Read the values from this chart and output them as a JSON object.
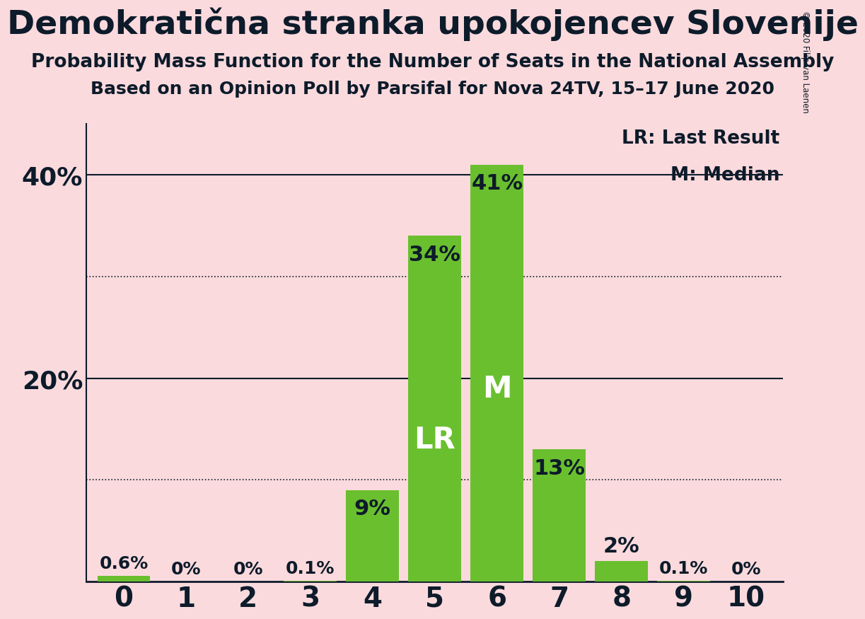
{
  "title": "Demokratična stranka upokojencev Slovenije",
  "subtitle1": "Probability Mass Function for the Number of Seats in the National Assembly",
  "subtitle2": "Based on an Opinion Poll by Parsifal for Nova 24TV, 15–17 June 2020",
  "copyright": "© 2020 Filip van Laenen",
  "categories": [
    0,
    1,
    2,
    3,
    4,
    5,
    6,
    7,
    8,
    9,
    10
  ],
  "values": [
    0.6,
    0.0,
    0.0,
    0.1,
    9.0,
    34.0,
    41.0,
    13.0,
    2.0,
    0.1,
    0.0
  ],
  "labels": [
    "0.6%",
    "0%",
    "0%",
    "0.1%",
    "9%",
    "34%",
    "41%",
    "13%",
    "2%",
    "0.1%",
    "0%"
  ],
  "bar_color": "#6abf2e",
  "background_color": "#fadadd",
  "text_color": "#0d1b2a",
  "ylim": [
    0,
    45
  ],
  "yticks_solid": [
    20,
    40
  ],
  "ytick_labels": {
    "20": "20%",
    "40": "40%"
  },
  "grid_lines_dotted": [
    10,
    30
  ],
  "last_result_bar": 5,
  "median_bar": 6,
  "lr_label": "LR",
  "m_label": "M",
  "legend_lr": "LR: Last Result",
  "legend_m": "M: Median",
  "title_fontsize": 34,
  "subtitle_fontsize": 19,
  "bar_label_fontsize": 22,
  "inside_label_fontsize": 30,
  "ytick_fontsize": 26,
  "xtick_fontsize": 28,
  "legend_fontsize": 19
}
